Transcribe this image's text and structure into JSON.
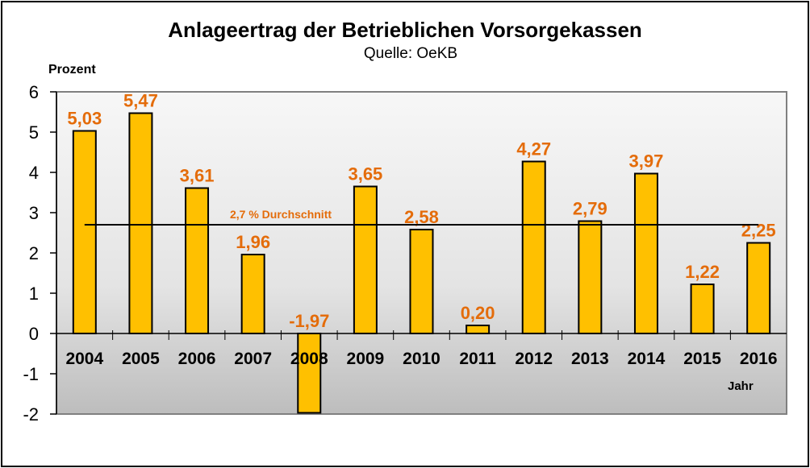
{
  "chart_data": {
    "type": "bar",
    "title": "Anlageertrag der Betrieblichen Vorsorgekassen",
    "subtitle": "Quelle: OeKB",
    "ylabel": "Prozent",
    "xlabel": "Jahr",
    "categories": [
      "2004",
      "2005",
      "2006",
      "2007",
      "2008",
      "2009",
      "2010",
      "2011",
      "2012",
      "2013",
      "2014",
      "2015",
      "2016"
    ],
    "values": [
      5.03,
      5.47,
      3.61,
      1.96,
      -1.97,
      3.65,
      2.58,
      0.2,
      4.27,
      2.79,
      3.97,
      1.22,
      2.25
    ],
    "data_labels": [
      "5,03",
      "5,47",
      "3,61",
      "1,96",
      "-1,97",
      "3,65",
      "2,58",
      "0,20",
      "4,27",
      "2,79",
      "3,97",
      "1,22",
      "2,25"
    ],
    "ylim": [
      -2,
      6
    ],
    "yticks": [
      "-2",
      "-1",
      "0",
      "1",
      "2",
      "3",
      "4",
      "5",
      "6"
    ],
    "grid": false,
    "average": {
      "value": 2.7,
      "label": "2,7 % Durchschnitt"
    },
    "colors": {
      "bar": "#FFC000",
      "label": "#E46C0A",
      "average_line": "#000000"
    }
  }
}
